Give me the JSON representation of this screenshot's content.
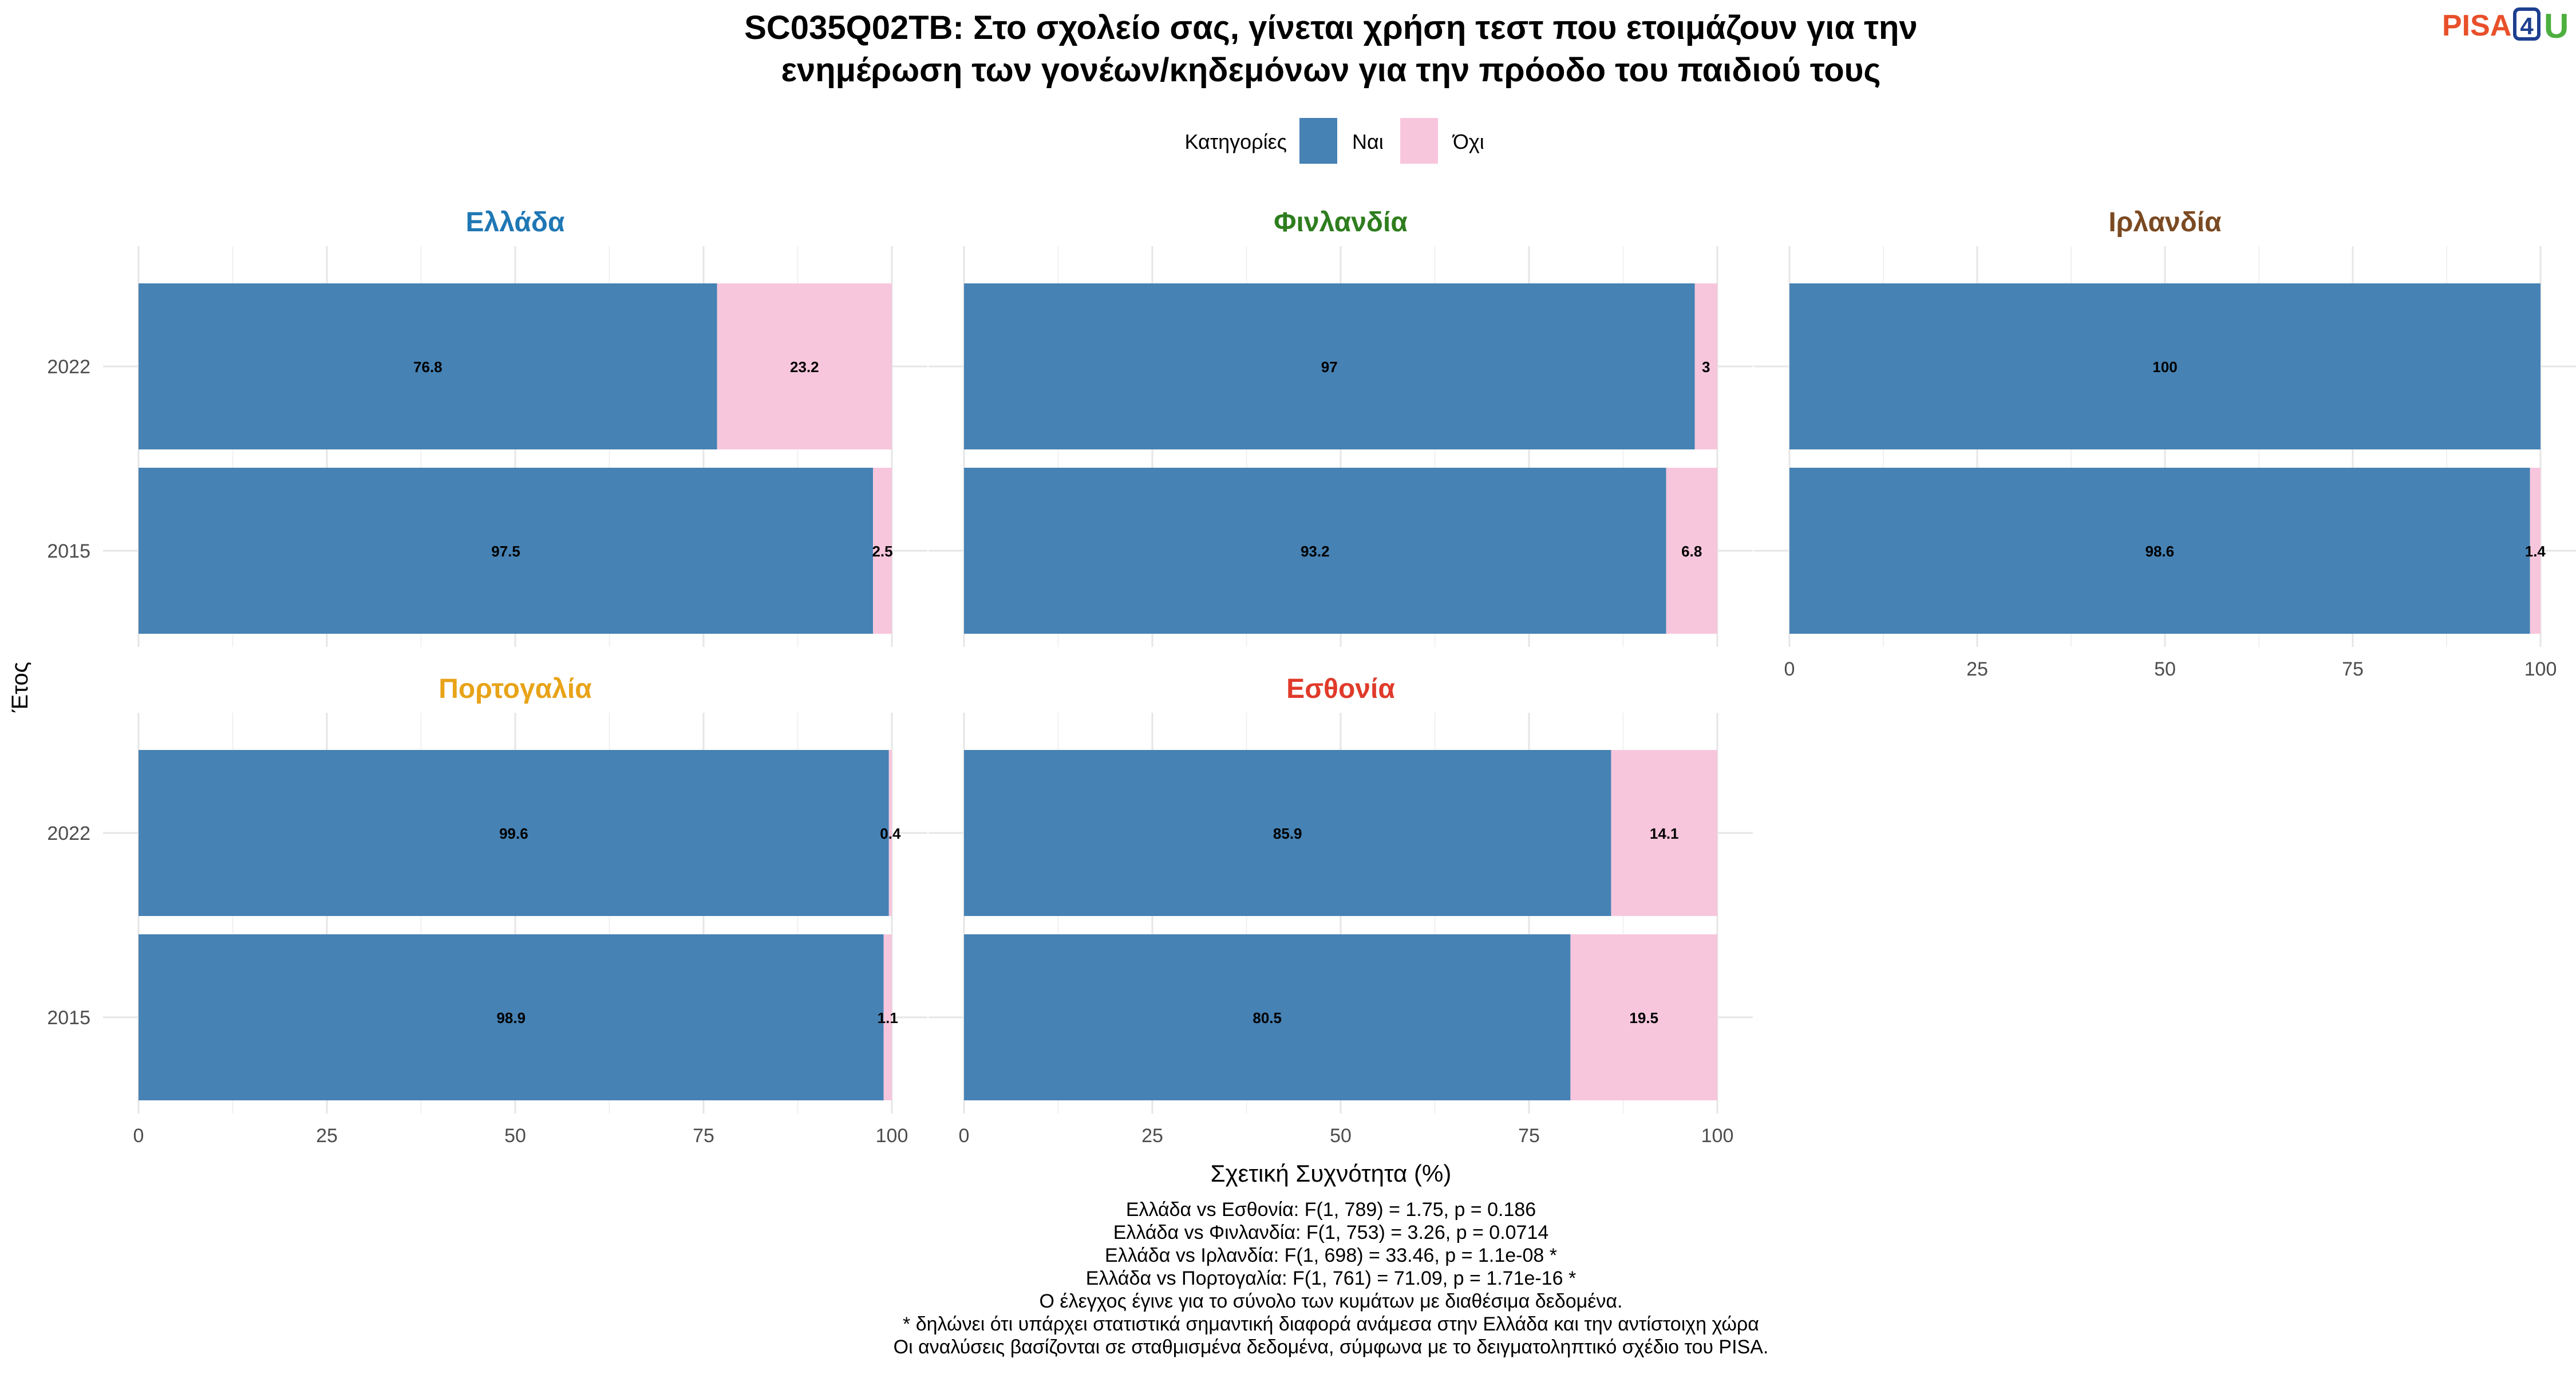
{
  "title_line1": "SC035Q02TB: Στο σχολείο σας, γίνεται χρήση τεστ που ετοιμάζουν για την",
  "title_line2": "ενημέρωση των γονέων/κηδεμόνων για την πρόοδο του παιδιού τους",
  "logo": {
    "text_left": "PISA",
    "text_box": "4",
    "text_right": "U",
    "colors": {
      "left": "#e8502a",
      "box": "#1d3f8f",
      "right": "#4caf3e"
    }
  },
  "legend": {
    "title": "Κατηγορίες",
    "placement": "top-center",
    "items": [
      {
        "label": "Ναι",
        "color": "#4682b4"
      },
      {
        "label": "Όχι",
        "color": "#f7c6dc"
      }
    ]
  },
  "chart_data": {
    "type": "bar",
    "orientation": "horizontal-stacked",
    "xlabel": "Σχετική Συχνότητα (%)",
    "ylabel": "Έτος",
    "xlim": [
      0,
      100
    ],
    "xticks": [
      "0",
      "25",
      "50",
      "75",
      "100"
    ],
    "categories": [
      "2022",
      "2015"
    ],
    "grid": true,
    "panels": [
      {
        "name": "Ελλάδα",
        "title_color": "#1f77b4",
        "yes": [
          76.8,
          97.5
        ],
        "no": [
          23.2,
          2.5
        ],
        "yes_labels": [
          "76.8",
          "97.5"
        ],
        "no_labels": [
          "23.2",
          "2.5"
        ]
      },
      {
        "name": "Φινλανδία",
        "title_color": "#2e7d1e",
        "yes": [
          97,
          93.2
        ],
        "no": [
          3,
          6.8
        ],
        "yes_labels": [
          "97",
          "93.2"
        ],
        "no_labels": [
          "3",
          "6.8"
        ]
      },
      {
        "name": "Ιρλανδία",
        "title_color": "#7b4a22",
        "yes": [
          100,
          98.6
        ],
        "no": [
          0,
          1.4
        ],
        "yes_labels": [
          "100",
          "98.6"
        ],
        "no_labels": [
          "",
          "1.4"
        ]
      },
      {
        "name": "Πορτογαλία",
        "title_color": "#e8a317",
        "yes": [
          99.6,
          98.9
        ],
        "no": [
          0.4,
          1.1
        ],
        "yes_labels": [
          "99.6",
          "98.9"
        ],
        "no_labels": [
          "0.4",
          "1.1"
        ]
      },
      {
        "name": "Εσθονία",
        "title_color": "#e03a2a",
        "yes": [
          85.9,
          80.5
        ],
        "no": [
          14.1,
          19.5
        ],
        "yes_labels": [
          "85.9",
          "80.5"
        ],
        "no_labels": [
          "14.1",
          "19.5"
        ]
      }
    ]
  },
  "footnotes": [
    "Ελλάδα vs Εσθονία: F(1, 789) = 1.75, p = 0.186",
    "Ελλάδα vs Φινλανδία: F(1, 753) = 3.26, p = 0.0714",
    "Ελλάδα vs Ιρλανδία: F(1, 698) = 33.46, p = 1.1e-08 *",
    "Ελλάδα vs Πορτογαλία: F(1, 761) = 71.09, p = 1.71e-16 *",
    "Ο έλεγχος έγινε για το σύνολο των κυμάτων με διαθέσιμα δεδομένα.",
    "* δηλώνει ότι υπάρχει στατιστικά σημαντική διαφορά ανάμεσα στην Ελλάδα και την αντίστοιχη χώρα",
    "Οι αναλύσεις βασίζονται σε σταθμισμένα δεδομένα, σύμφωνα με το δειγματοληπτικό σχέδιο του PISA."
  ]
}
